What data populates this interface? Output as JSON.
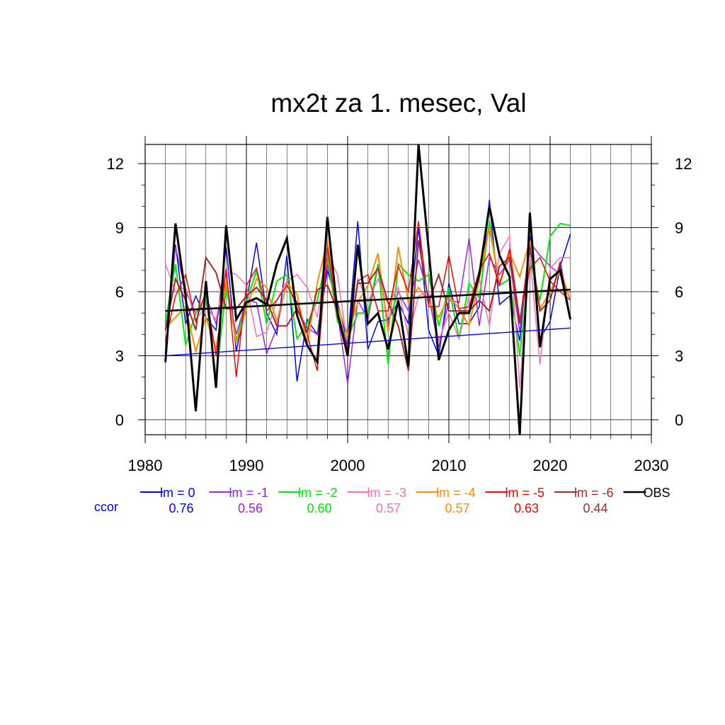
{
  "chart_data": {
    "type": "line",
    "title": "mx2t za 1. mesec, Val",
    "xlabel": "",
    "ylabel": "",
    "xlim": [
      1980,
      2030
    ],
    "ylim": [
      -0.7,
      12.9
    ],
    "x_ticks": [
      1980,
      1990,
      2000,
      2010,
      2020,
      2030
    ],
    "y_ticks": [
      0,
      3,
      6,
      9,
      12
    ],
    "x_tick_labels": [
      "1980",
      "1990",
      "2000",
      "2010",
      "2020",
      "2030"
    ],
    "y_tick_labels": [
      "0",
      "3",
      "6",
      "9",
      "12"
    ],
    "grid": true,
    "legend_position": "bottom",
    "ccor_label": "ccor",
    "x": [
      1982,
      1983,
      1984,
      1985,
      1986,
      1987,
      1988,
      1989,
      1990,
      1991,
      1992,
      1993,
      1994,
      1995,
      1996,
      1997,
      1998,
      1999,
      2000,
      2001,
      2002,
      2003,
      2004,
      2005,
      2006,
      2007,
      2008,
      2009,
      2010,
      2011,
      2012,
      2013,
      2014,
      2015,
      2016,
      2017,
      2018,
      2019,
      2020,
      2021,
      2022
    ],
    "series": [
      {
        "name": "lm = 0",
        "color": "#0000ff",
        "width": 1.5,
        "ccor": "0.76",
        "values": [
          3.1,
          8.2,
          4.5,
          5.8,
          4.8,
          4.2,
          8.1,
          3.2,
          5.5,
          8.3,
          5.0,
          4.0,
          7.7,
          1.8,
          4.7,
          4.0,
          7.0,
          5.5,
          3.6,
          9.3,
          3.3,
          4.6,
          4.7,
          5.5,
          4.5,
          9.0,
          4.2,
          3.0,
          6.4,
          4.5,
          4.5,
          5.3,
          10.3,
          5.4,
          5.8,
          3.7,
          8.6,
          3.8,
          4.6,
          7.2,
          8.7
        ],
        "trend": [
          3.0,
          4.3
        ]
      },
      {
        "name": "lm = -1",
        "color": "#a020f0",
        "width": 1.5,
        "ccor": "0.56",
        "values": [
          4.2,
          8.1,
          6.0,
          5.0,
          5.8,
          4.5,
          6.5,
          4.0,
          5.6,
          5.5,
          3.1,
          4.3,
          6.5,
          5.2,
          4.3,
          4.0,
          7.3,
          5.0,
          1.7,
          5.6,
          4.7,
          7.2,
          4.5,
          6.0,
          5.1,
          7.5,
          5.8,
          3.4,
          5.6,
          5.5,
          8.5,
          4.4,
          7.6,
          6.8,
          7.5,
          4.1,
          8.3,
          7.7,
          7.2,
          6.8,
          5.6
        ],
        "trend": null
      },
      {
        "name": "lm = -2",
        "color": "#00ee00",
        "width": 2.0,
        "ccor": "0.60",
        "values": [
          4.6,
          7.3,
          3.5,
          5.0,
          5.8,
          2.0,
          6.2,
          3.7,
          5.5,
          7.0,
          4.5,
          6.5,
          6.8,
          3.8,
          4.5,
          5.6,
          7.7,
          4.6,
          3.8,
          5.0,
          5.0,
          7.3,
          2.6,
          7.3,
          6.8,
          6.5,
          6.8,
          4.4,
          6.2,
          3.8,
          6.4,
          5.7,
          9.3,
          6.3,
          6.6,
          3.0,
          7.5,
          5.6,
          8.6,
          9.2,
          9.1
        ],
        "trend": null
      },
      {
        "name": "lm = -3",
        "color": "#ff6eb4",
        "width": 1.5,
        "ccor": "0.57",
        "values": [
          7.3,
          6.0,
          6.2,
          4.7,
          5.3,
          4.7,
          7.0,
          6.8,
          6.3,
          3.9,
          4.1,
          5.6,
          6.5,
          6.8,
          6.2,
          4.8,
          7.8,
          6.8,
          3.4,
          6.6,
          5.5,
          6.6,
          5.4,
          6.2,
          3.9,
          5.8,
          6.0,
          3.7,
          5.0,
          3.8,
          5.8,
          6.6,
          4.4,
          7.8,
          8.6,
          1.5,
          7.6,
          2.6,
          7.1,
          7.6,
          7.6
        ],
        "trend": null
      },
      {
        "name": "lm = -4",
        "color": "#ff8c00",
        "width": 2.0,
        "ccor": "0.57",
        "values": [
          4.3,
          4.8,
          5.3,
          3.2,
          4.8,
          3.3,
          6.5,
          3.6,
          5.2,
          6.6,
          6.2,
          4.6,
          6.4,
          5.9,
          3.5,
          6.4,
          8.4,
          5.3,
          4.0,
          5.5,
          6.3,
          7.8,
          4.1,
          8.1,
          5.5,
          6.2,
          5.5,
          4.8,
          5.8,
          5.2,
          4.4,
          6.6,
          9.0,
          6.4,
          7.8,
          6.7,
          8.4,
          5.2,
          6.0,
          7.0,
          5.6
        ],
        "trend": null
      },
      {
        "name": "lm = -5",
        "color": "#ff0000",
        "width": 1.5,
        "ccor": "0.63",
        "values": [
          3.7,
          5.8,
          6.8,
          4.6,
          6.0,
          3.0,
          7.1,
          2.0,
          6.3,
          7.1,
          5.1,
          5.6,
          6.3,
          5.5,
          4.0,
          2.3,
          8.1,
          4.8,
          3.5,
          6.5,
          6.8,
          5.1,
          5.1,
          7.2,
          6.0,
          9.3,
          5.3,
          5.3,
          7.7,
          5.2,
          5.3,
          7.0,
          7.8,
          6.3,
          8.0,
          4.7,
          7.1,
          7.6,
          6.5,
          6.0,
          5.6
        ],
        "trend": null
      },
      {
        "name": "lm = -6",
        "color": "#a52a2a",
        "width": 2.0,
        "ccor": "0.44",
        "values": [
          4.2,
          6.6,
          5.6,
          4.2,
          7.6,
          6.9,
          5.2,
          5.2,
          5.8,
          6.2,
          5.6,
          4.4,
          4.4,
          5.2,
          4.1,
          6.1,
          6.3,
          5.1,
          3.3,
          6.4,
          6.4,
          7.1,
          5.5,
          4.4,
          2.3,
          8.4,
          5.5,
          6.8,
          5.1,
          5.1,
          5.1,
          5.6,
          5.1,
          7.2,
          7.6,
          4.5,
          8.1,
          5.1,
          5.6,
          7.4,
          4.7
        ],
        "trend": null
      },
      {
        "name": "OBS",
        "color": "#000000",
        "width": 3.0,
        "ccor": "",
        "values": [
          2.7,
          9.2,
          5.8,
          0.4,
          6.5,
          1.5,
          9.1,
          4.7,
          5.5,
          5.7,
          5.4,
          7.3,
          8.5,
          4.9,
          3.5,
          2.7,
          9.5,
          5.0,
          3.0,
          8.2,
          4.5,
          5.0,
          3.3,
          5.6,
          2.5,
          12.9,
          8.0,
          2.8,
          4.2,
          5.0,
          5.0,
          6.8,
          10.0,
          7.7,
          6.7,
          -0.7,
          9.7,
          3.4,
          6.6,
          7.0,
          4.7
        ],
        "trend": [
          5.1,
          6.1
        ]
      }
    ]
  }
}
